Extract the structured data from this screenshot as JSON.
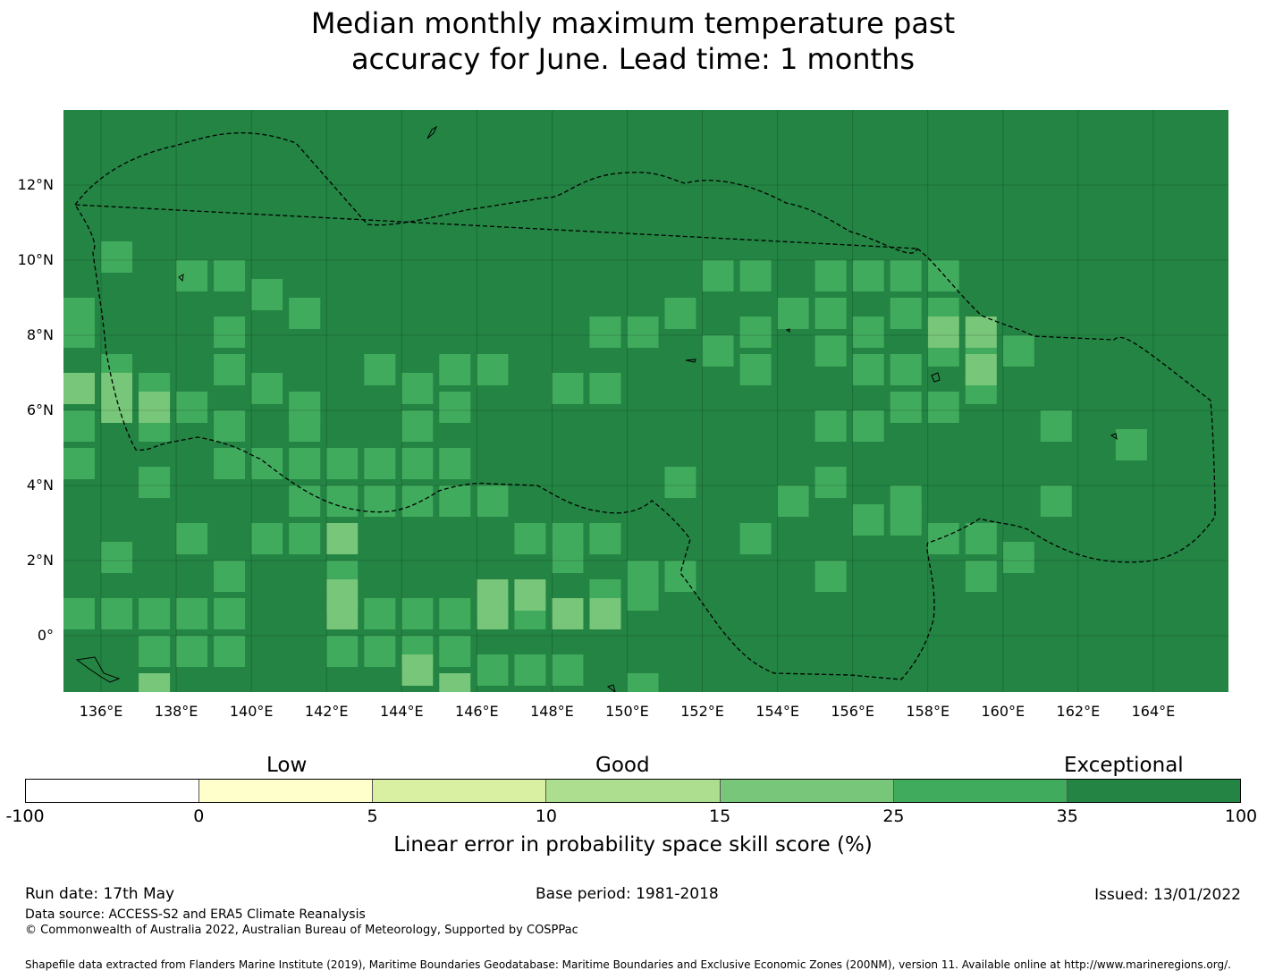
{
  "title_line1": "Median monthly maximum temperature past",
  "title_line2": "accuracy for June. Lead time: 1 months",
  "map": {
    "lon_range": [
      135,
      166
    ],
    "lat_range": [
      -1.5,
      14
    ],
    "cell_deg": 0.833,
    "background_class": "35-100",
    "x_ticks": [
      "136°E",
      "138°E",
      "140°E",
      "142°E",
      "144°E",
      "146°E",
      "148°E",
      "150°E",
      "152°E",
      "154°E",
      "156°E",
      "158°E",
      "160°E",
      "162°E",
      "164°E"
    ],
    "x_tick_values": [
      136,
      138,
      140,
      142,
      144,
      146,
      148,
      150,
      152,
      154,
      156,
      158,
      160,
      162,
      164
    ],
    "y_ticks": [
      "12°N",
      "10°N",
      "8°N",
      "6°N",
      "4°N",
      "2°N",
      "0°"
    ],
    "y_tick_values": [
      12,
      10,
      8,
      6,
      4,
      2,
      0
    ],
    "cells_25_35": [
      [
        136,
        10.5
      ],
      [
        135,
        9
      ],
      [
        135,
        8.5
      ],
      [
        136,
        7.5
      ],
      [
        137,
        7
      ],
      [
        139,
        7.5
      ],
      [
        139,
        6
      ],
      [
        140,
        7
      ],
      [
        141,
        6.5
      ],
      [
        141,
        6
      ],
      [
        138,
        6.5
      ],
      [
        137,
        6
      ],
      [
        135,
        6
      ],
      [
        135,
        5
      ],
      [
        137,
        4.5
      ],
      [
        139,
        5
      ],
      [
        140,
        5
      ],
      [
        141,
        5
      ],
      [
        141,
        4
      ],
      [
        142,
        5
      ],
      [
        143,
        5
      ],
      [
        143,
        7.5
      ],
      [
        144,
        7
      ],
      [
        144,
        6
      ],
      [
        144,
        5
      ],
      [
        145,
        5
      ],
      [
        145,
        7.5
      ],
      [
        146,
        7.5
      ],
      [
        145,
        6.5
      ],
      [
        139,
        8.5
      ],
      [
        141,
        9
      ],
      [
        138,
        10
      ],
      [
        139,
        10
      ],
      [
        140,
        9.5
      ],
      [
        142,
        4
      ],
      [
        143,
        4
      ],
      [
        144,
        4
      ],
      [
        145,
        4
      ],
      [
        146,
        4
      ],
      [
        147,
        3
      ],
      [
        148,
        2.5
      ],
      [
        148,
        3
      ],
      [
        149,
        3
      ],
      [
        150,
        2
      ],
      [
        149,
        1.5
      ],
      [
        148,
        1
      ],
      [
        147,
        1
      ],
      [
        146,
        1
      ],
      [
        145,
        1
      ],
      [
        144,
        1
      ],
      [
        143,
        1
      ],
      [
        142,
        2
      ],
      [
        141,
        3
      ],
      [
        140,
        3
      ],
      [
        139,
        2
      ],
      [
        139,
        1
      ],
      [
        138,
        1
      ],
      [
        137,
        1
      ],
      [
        136,
        1
      ],
      [
        135,
        1
      ],
      [
        137,
        0
      ],
      [
        138,
        0
      ],
      [
        139,
        0
      ],
      [
        142,
        0
      ],
      [
        143,
        0
      ],
      [
        144,
        0
      ],
      [
        145,
        0
      ],
      [
        146,
        -0.5
      ],
      [
        147,
        -0.5
      ],
      [
        148,
        -0.5
      ],
      [
        150,
        -1
      ],
      [
        150,
        1.5
      ],
      [
        151,
        2
      ],
      [
        136,
        2.5
      ],
      [
        138,
        3
      ],
      [
        150,
        8.5
      ],
      [
        149,
        8.5
      ],
      [
        151,
        9
      ],
      [
        152,
        10
      ],
      [
        153,
        10
      ],
      [
        153,
        8.5
      ],
      [
        154,
        9
      ],
      [
        155,
        9
      ],
      [
        155,
        8
      ],
      [
        156,
        8.5
      ],
      [
        156,
        7.5
      ],
      [
        157,
        7.5
      ],
      [
        157,
        9
      ],
      [
        158,
        9
      ],
      [
        158,
        8
      ],
      [
        159,
        8
      ],
      [
        159,
        7
      ],
      [
        158,
        6.5
      ],
      [
        157,
        6.5
      ],
      [
        156,
        6
      ],
      [
        155,
        6
      ],
      [
        157,
        10
      ],
      [
        156,
        10
      ],
      [
        155,
        10
      ],
      [
        158,
        10
      ],
      [
        160,
        8
      ],
      [
        161,
        6
      ],
      [
        163,
        5.5
      ],
      [
        152,
        8
      ],
      [
        153,
        7.5
      ],
      [
        148,
        7
      ],
      [
        149,
        7
      ],
      [
        151,
        4.5
      ],
      [
        154,
        4
      ],
      [
        155,
        4.5
      ],
      [
        156,
        3.5
      ],
      [
        157,
        3.5
      ],
      [
        157,
        4
      ],
      [
        158,
        3
      ],
      [
        159,
        3
      ],
      [
        159,
        2
      ],
      [
        160,
        2.5
      ],
      [
        161,
        4
      ],
      [
        153,
        3
      ],
      [
        155,
        2
      ]
    ],
    "cells_15_25": [
      [
        135,
        7
      ],
      [
        136,
        7
      ],
      [
        136,
        6.5
      ],
      [
        137,
        6.5
      ],
      [
        142,
        3
      ],
      [
        142,
        1.5
      ],
      [
        142,
        1
      ],
      [
        144,
        -0.5
      ],
      [
        145,
        -1
      ],
      [
        146,
        1.5
      ],
      [
        147,
        1.5
      ],
      [
        146,
        1
      ],
      [
        148,
        1
      ],
      [
        149,
        1
      ],
      [
        158,
        8.5
      ],
      [
        159,
        8.5
      ],
      [
        159,
        7.5
      ],
      [
        137,
        -1
      ]
    ]
  },
  "legend": {
    "categories": [
      "Low",
      "Good",
      "Exceptional"
    ],
    "bins": [
      "-100",
      "0",
      "5",
      "10",
      "15",
      "25",
      "35",
      "100"
    ],
    "colors": [
      "#ffffff",
      "#ffffcc",
      "#d9f0a3",
      "#addd8e",
      "#78c679",
      "#41ab5d",
      "#238443"
    ],
    "title": "Linear error in probability space skill score (%)"
  },
  "footer": {
    "run_date": "Run date: 17th May",
    "base_period": "Base period: 1981-2018",
    "issued": "Issued: 13/01/2022",
    "data_source": "Data source: ACCESS-S2 and ERA5 Climate Reanalysis",
    "copyright": "© Commonwealth of Australia 2022, Australian Bureau of Meteorology, Supported by COSPPac",
    "shapefile": "Shapefile data extracted from Flanders Marine Institute (2019), Maritime Boundaries Geodatabase: Maritime Boundaries and Exclusive Economic Zones (200NM), version 11. Available online at http://www.marineregions.org/."
  }
}
